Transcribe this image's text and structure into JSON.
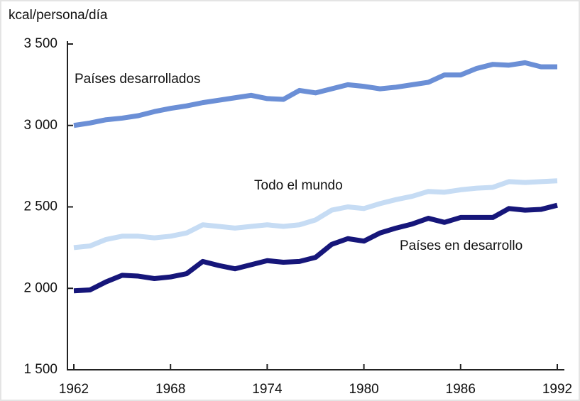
{
  "chart_data": {
    "type": "line",
    "y_axis_label": "kcal/persona/día",
    "x": [
      1962,
      1963,
      1964,
      1965,
      1966,
      1967,
      1968,
      1969,
      1970,
      1971,
      1972,
      1973,
      1974,
      1975,
      1976,
      1977,
      1978,
      1979,
      1980,
      1981,
      1982,
      1983,
      1984,
      1985,
      1986,
      1987,
      1988,
      1989,
      1990,
      1991,
      1992
    ],
    "series": [
      {
        "name": "Países desarrollados",
        "color": "#6b8fd6",
        "values": [
          3000,
          3015,
          3035,
          3045,
          3060,
          3085,
          3105,
          3120,
          3140,
          3155,
          3170,
          3185,
          3165,
          3160,
          3215,
          3200,
          3225,
          3250,
          3240,
          3225,
          3235,
          3250,
          3265,
          3310,
          3310,
          3350,
          3375,
          3370,
          3385,
          3360,
          3360
        ]
      },
      {
        "name": "Todo el mundo",
        "color": "#c6dcf4",
        "values": [
          2250,
          2260,
          2300,
          2320,
          2320,
          2310,
          2320,
          2340,
          2390,
          2380,
          2370,
          2380,
          2390,
          2380,
          2390,
          2420,
          2480,
          2500,
          2490,
          2520,
          2545,
          2565,
          2595,
          2590,
          2605,
          2615,
          2620,
          2655,
          2650,
          2655,
          2660
        ]
      },
      {
        "name": "Países en desarrollo",
        "color": "#16167a",
        "values": [
          1985,
          1990,
          2040,
          2080,
          2075,
          2060,
          2070,
          2090,
          2165,
          2140,
          2120,
          2145,
          2170,
          2160,
          2165,
          2190,
          2270,
          2305,
          2290,
          2340,
          2370,
          2395,
          2430,
          2405,
          2435,
          2435,
          2435,
          2490,
          2480,
          2485,
          2510
        ]
      }
    ],
    "xlim": [
      1962,
      1992
    ],
    "xticks": [
      1962,
      1968,
      1974,
      1980,
      1986,
      1992
    ],
    "ylim": [
      1500,
      3500
    ],
    "yticks": [
      {
        "value": 1500,
        "label": "1 500"
      },
      {
        "value": 2000,
        "label": "2 000"
      },
      {
        "value": 2500,
        "label": "2 500"
      },
      {
        "value": 3000,
        "label": "3 000"
      },
      {
        "value": 3500,
        "label": "3 500"
      }
    ]
  }
}
